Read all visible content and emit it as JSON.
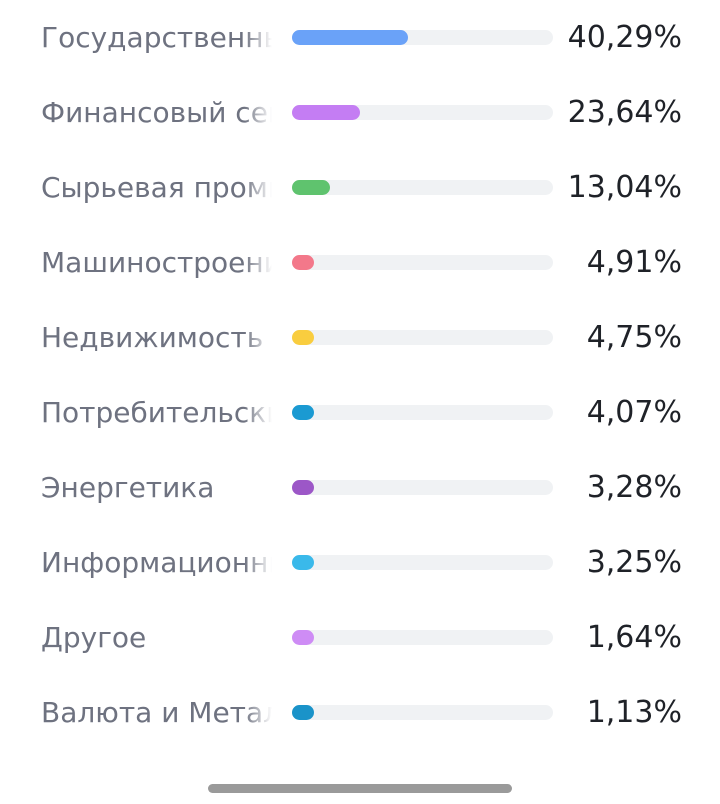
{
  "sectors": [
    {
      "label": "Государственные облигации",
      "value": "40,29%",
      "share": 0.4029,
      "color": "#6aa2f8"
    },
    {
      "label": "Финансовый сектор",
      "value": "23,64%",
      "share": 0.2364,
      "color": "#c47df3"
    },
    {
      "label": "Сырьевая промышленность",
      "value": "13,04%",
      "share": 0.1304,
      "color": "#5fc36e"
    },
    {
      "label": "Машиностроение",
      "value": "4,91%",
      "share": 0.0491,
      "color": "#f3788a"
    },
    {
      "label": "Недвижимость",
      "value": "4,75%",
      "share": 0.0475,
      "color": "#f9cd3f"
    },
    {
      "label": "Потребительский сектор",
      "value": "4,07%",
      "share": 0.0407,
      "color": "#1b9ad2"
    },
    {
      "label": "Энергетика",
      "value": "3,28%",
      "share": 0.0328,
      "color": "#9c57c7"
    },
    {
      "label": "Информационные технологии",
      "value": "3,25%",
      "share": 0.0325,
      "color": "#3ab9ea"
    },
    {
      "label": "Другое",
      "value": "1,64%",
      "share": 0.0164,
      "color": "#ce8cf5"
    },
    {
      "label": "Валюта и Металлы",
      "value": "1,13%",
      "share": 0.0113,
      "color": "#1a93c9"
    }
  ]
}
